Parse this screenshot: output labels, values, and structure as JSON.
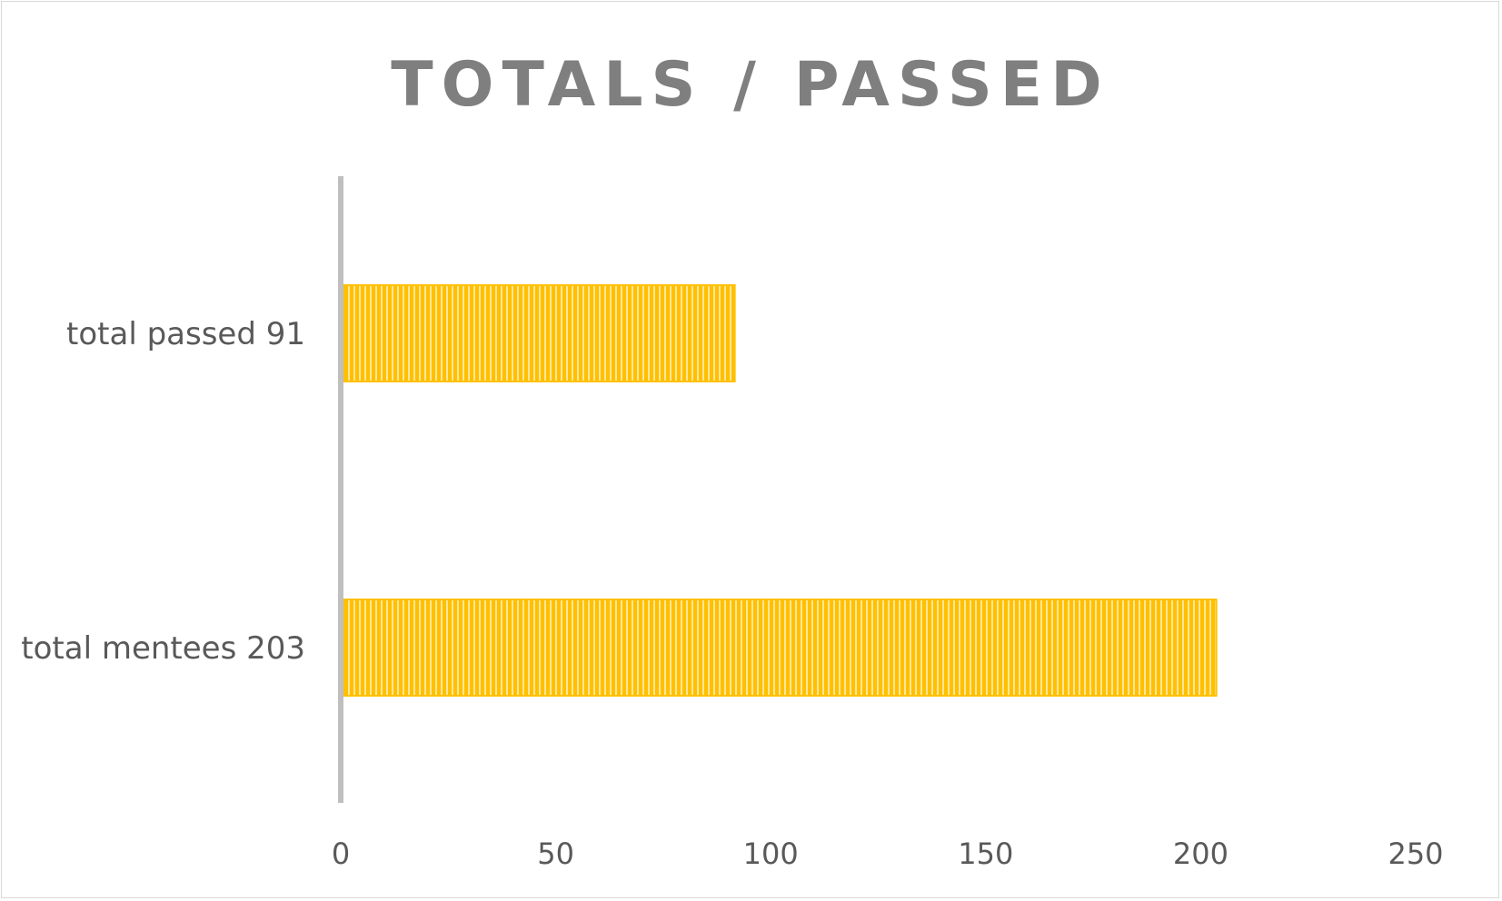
{
  "chart_data": {
    "type": "bar",
    "orientation": "horizontal",
    "title": "TOTALS / PASSED",
    "categories": [
      "total mentees 203",
      "total passed 91"
    ],
    "values": [
      203,
      91
    ],
    "xlim": [
      0,
      250
    ],
    "xticks": [
      "0",
      "50",
      "100",
      "150",
      "200",
      "250"
    ],
    "xlabel": "",
    "ylabel": "",
    "grid": false,
    "legend": "none",
    "bar_color": "#FFC000",
    "bar_stripe_color": "#FFE699",
    "bar_pattern": "vertical-stripes",
    "axis_color": "#BFBFBF"
  }
}
